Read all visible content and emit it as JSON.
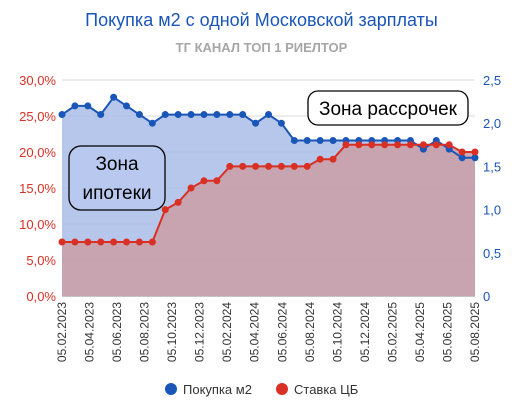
{
  "title": "Покупка м2 с одной Московской зарплаты",
  "subtitle": "ТГ КАНАЛ ТОП 1 РИЕЛТОР",
  "colors": {
    "blue": "#1a56b8",
    "red": "#d93025",
    "blue_fill": "#a9bde8",
    "red_fill": "#c9a0a8",
    "title": "#1a56b8",
    "subtitle": "#a6a6a6"
  },
  "annotations": {
    "mortgage": [
      "Зона",
      "ипотеки"
    ],
    "installment": "Зона рассрочек"
  },
  "chart_data": {
    "type": "area",
    "x_tick_labels": [
      "05.02.2023",
      "05.04.2023",
      "05.06.2023",
      "05.08.2023",
      "05.10.2023",
      "05.12.2023",
      "05.02.2024",
      "05.04.2024",
      "05.06.2024",
      "05.08.2024",
      "05.10.2024",
      "05.12.2024",
      "05.02.2025",
      "05.04.2025",
      "05.06.2025",
      "05.08.2025"
    ],
    "y_left": {
      "ticks": [
        "0,0%",
        "5,0%",
        "10,0%",
        "15,0%",
        "20,0%",
        "25,0%",
        "30,0%"
      ],
      "range": [
        0,
        30
      ]
    },
    "y_right": {
      "ticks": [
        "0",
        "0,5",
        "1,0",
        "1,5",
        "2,0",
        "2,5"
      ],
      "range": [
        0,
        2.5
      ]
    },
    "legend": {
      "position": "bottom",
      "items": [
        "Покупка м2",
        "Ставка ЦБ"
      ]
    },
    "series": [
      {
        "name": "Покупка м2",
        "axis": "right",
        "values": [
          2.1,
          2.2,
          2.2,
          2.1,
          2.3,
          2.2,
          2.1,
          2.0,
          2.1,
          2.1,
          2.1,
          2.1,
          2.1,
          2.1,
          2.1,
          2.0,
          2.1,
          2.0,
          1.8,
          1.8,
          1.8,
          1.8,
          1.8,
          1.8,
          1.8,
          1.8,
          1.8,
          1.8,
          1.7,
          1.8,
          1.7,
          1.6,
          1.6
        ]
      },
      {
        "name": "Ставка ЦБ",
        "axis": "left",
        "values": [
          7.5,
          7.5,
          7.5,
          7.5,
          7.5,
          7.5,
          7.5,
          7.5,
          12,
          13,
          15,
          16,
          16,
          18,
          18,
          18,
          18,
          18,
          18,
          18,
          19,
          19,
          21,
          21,
          21,
          21,
          21,
          21,
          21,
          21,
          21,
          20,
          20
        ]
      }
    ]
  }
}
